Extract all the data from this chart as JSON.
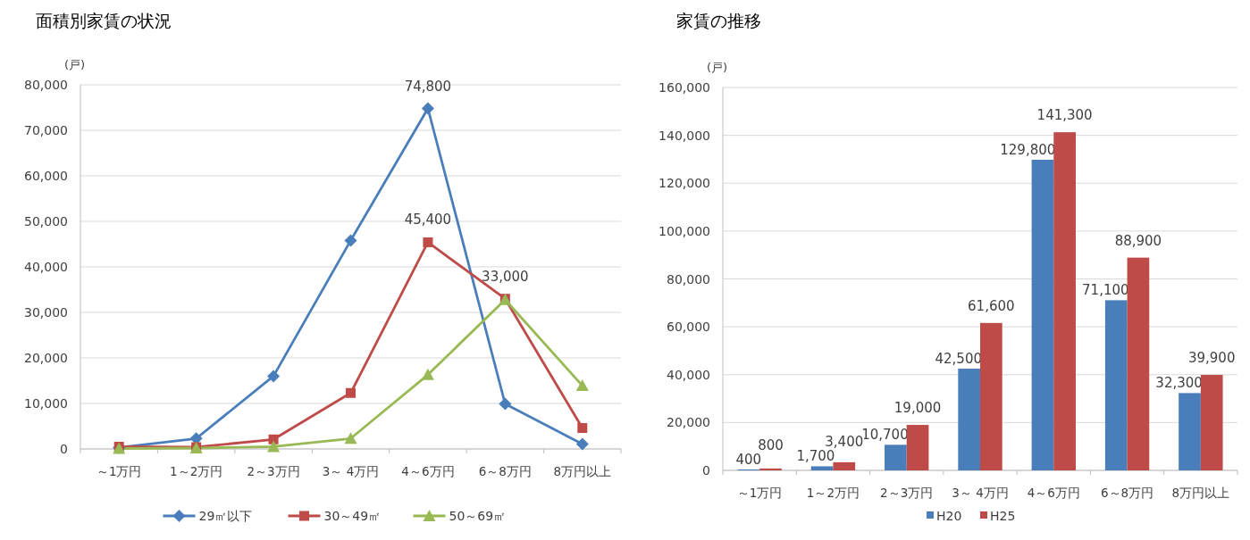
{
  "chart_data": [
    {
      "type": "line",
      "title": "面積別家賃の状況",
      "ylabel": "(戸)",
      "categories": [
        "～1万円",
        "1～2万円",
        "2～3万円",
        "3～ 4万円",
        "4～6万円",
        "6～8万円",
        "8万円以上"
      ],
      "ylim": [
        0,
        80000
      ],
      "yticks": [
        {
          "value": 0,
          "label": "0"
        },
        {
          "value": 10000,
          "label": "10,000"
        },
        {
          "value": 20000,
          "label": "20,000"
        },
        {
          "value": 30000,
          "label": "30,000"
        },
        {
          "value": 40000,
          "label": "40,000"
        },
        {
          "value": 50000,
          "label": "50,000"
        },
        {
          "value": 60000,
          "label": "60,000"
        },
        {
          "value": 70000,
          "label": "70,000"
        },
        {
          "value": 80000,
          "label": "80,000"
        }
      ],
      "grid": "y",
      "legend": "bottom",
      "series": [
        {
          "name": "29㎡以下",
          "color": "#4a7ebb",
          "marker": "diamond",
          "values": [
            300,
            2300,
            16000,
            45800,
            74800,
            9900,
            1100
          ],
          "value_labels": [
            null,
            null,
            null,
            null,
            "74,800",
            null,
            null
          ]
        },
        {
          "name": "30～49㎡",
          "color": "#be4b48",
          "marker": "square",
          "values": [
            500,
            400,
            2100,
            12300,
            45400,
            33000,
            4600
          ],
          "value_labels": [
            null,
            null,
            null,
            null,
            "45,400",
            "33,000",
            null
          ]
        },
        {
          "name": "50～69㎡",
          "color": "#98b954",
          "marker": "triangle",
          "values": [
            100,
            200,
            500,
            2300,
            16300,
            32800,
            13900
          ],
          "value_labels": [
            null,
            null,
            null,
            null,
            null,
            null,
            null
          ]
        }
      ]
    },
    {
      "type": "bar",
      "title": "家賃の推移",
      "ylabel": "(戸)",
      "categories": [
        "～1万円",
        "1～2万円",
        "2～3万円",
        "3～ 4万円",
        "4～6万円",
        "6～8万円",
        "8万円以上"
      ],
      "ylim": [
        0,
        160000
      ],
      "yticks": [
        {
          "value": 0,
          "label": "0"
        },
        {
          "value": 20000,
          "label": "20,000"
        },
        {
          "value": 40000,
          "label": "40,000"
        },
        {
          "value": 60000,
          "label": "60,000"
        },
        {
          "value": 80000,
          "label": "80,000"
        },
        {
          "value": 100000,
          "label": "100,000"
        },
        {
          "value": 120000,
          "label": "120,000"
        },
        {
          "value": 140000,
          "label": "140,000"
        },
        {
          "value": 160000,
          "label": "160,000"
        }
      ],
      "grid": "y",
      "legend": "bottom",
      "series": [
        {
          "name": "H20",
          "color": "#4a7ebb",
          "values": [
            400,
            1700,
            10700,
            42500,
            129800,
            71100,
            32300
          ],
          "value_labels": [
            "400",
            "1,700",
            "10,700",
            "42,500",
            "129,800",
            "71,100",
            "32,300"
          ]
        },
        {
          "name": "H25",
          "color": "#be4b48",
          "values": [
            800,
            3400,
            19000,
            61600,
            141300,
            88900,
            39900
          ],
          "value_labels": [
            "800",
            "3,400",
            "19,000",
            "61,600",
            "141,300",
            "88,900",
            "39,900"
          ]
        }
      ]
    }
  ]
}
